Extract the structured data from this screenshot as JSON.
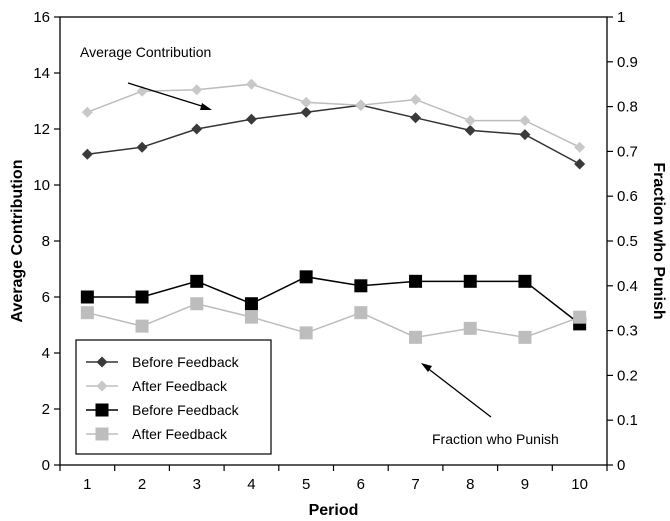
{
  "chart_data": {
    "type": "line",
    "x": [
      1,
      2,
      3,
      4,
      5,
      6,
      7,
      8,
      9,
      10
    ],
    "xlabel": "Period",
    "ylabel": "Average Contribution",
    "y2label": "Fraction who Punish",
    "ylim": [
      0,
      16
    ],
    "y2lim": [
      0,
      1
    ],
    "yticks": [
      0,
      2,
      4,
      6,
      8,
      10,
      12,
      14,
      16
    ],
    "y2ticks": [
      "0",
      "0.1",
      "0.2",
      "0.3",
      "0.4",
      "0.5",
      "0.6",
      "0.7",
      "0.8",
      "0.9",
      "1"
    ],
    "grid": false,
    "legend_position": "bottom-left",
    "series": [
      {
        "name": "Before Feedback",
        "axis": "left",
        "marker": "diamond",
        "color": "#333333",
        "marker_color": "#3a3a3a",
        "values": [
          11.1,
          11.35,
          12.0,
          12.35,
          12.6,
          12.85,
          12.4,
          11.95,
          11.8,
          10.75
        ]
      },
      {
        "name": "After Feedback",
        "axis": "left",
        "marker": "diamond",
        "color": "#bdbdbd",
        "marker_color": "#c8c8c8",
        "values": [
          12.6,
          13.35,
          13.4,
          13.6,
          12.95,
          12.85,
          13.05,
          12.3,
          12.3,
          11.35
        ]
      },
      {
        "name": "Before Feedback",
        "axis": "right",
        "marker": "square",
        "color": "#000000",
        "marker_color": "#000000",
        "values": [
          0.375,
          0.375,
          0.41,
          0.36,
          0.42,
          0.4,
          0.41,
          0.41,
          0.41,
          0.315
        ]
      },
      {
        "name": "After Feedback",
        "axis": "right",
        "marker": "square",
        "color": "#bdbdbd",
        "marker_color": "#bdbdbd",
        "values": [
          0.34,
          0.31,
          0.36,
          0.33,
          0.295,
          0.34,
          0.285,
          0.305,
          0.285,
          0.33
        ]
      }
    ],
    "annotations": [
      {
        "text": "Average Contribution"
      },
      {
        "text": "Fraction who Punish"
      }
    ]
  }
}
